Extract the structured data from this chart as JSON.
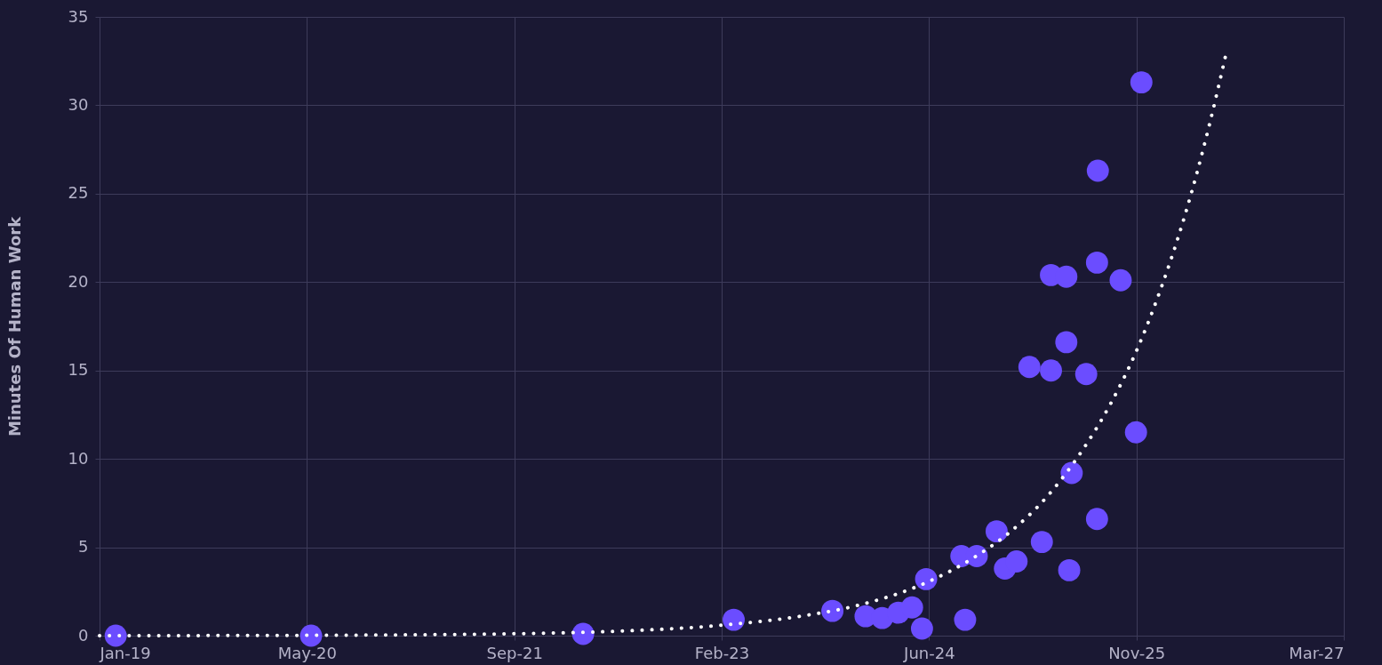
{
  "chart_data": {
    "type": "scatter",
    "ylabel": "Minutes Of Human Work",
    "xlim": [
      "2019-01-01",
      "2027-03-20"
    ],
    "xticks": [
      {
        "value": "2019-01-01",
        "label": "Jan-19"
      },
      {
        "value": "2020-05-15",
        "label": "May-20"
      },
      {
        "value": "2021-09-27",
        "label": "Sep-21"
      },
      {
        "value": "2023-02-09",
        "label": "Feb-23"
      },
      {
        "value": "2024-06-23",
        "label": "Jun-24"
      },
      {
        "value": "2025-11-05",
        "label": "Nov-25"
      },
      {
        "value": "2027-03-20",
        "label": "Mar-27"
      }
    ],
    "ylim": [
      0,
      35
    ],
    "yticks": [
      0,
      5,
      10,
      15,
      20,
      25,
      30,
      35
    ],
    "grid": true,
    "series": [
      {
        "color": "#6b4dff",
        "marker": "circle",
        "x": [
          "2019-02-09",
          "2020-05-25",
          "2022-03-12",
          "2023-03-10",
          "2023-11-03",
          "2024-01-22",
          "2024-03-02",
          "2024-04-10",
          "2024-05-13",
          "2024-06-06",
          "2024-06-16",
          "2024-09-09",
          "2024-09-18",
          "2024-10-16",
          "2024-12-03",
          "2024-12-23",
          "2025-01-20",
          "2025-02-20",
          "2025-03-22",
          "2025-04-13",
          "2025-04-13",
          "2025-05-20",
          "2025-05-20",
          "2025-05-27",
          "2025-06-02",
          "2025-07-07",
          "2025-08-04",
          "2025-08-02",
          "2025-08-02",
          "2025-09-28",
          "2025-11-04",
          "2025-11-17"
        ],
        "values": [
          0,
          0,
          0.1,
          0.9,
          1.4,
          1.1,
          1.0,
          1.3,
          1.6,
          0.4,
          3.2,
          4.5,
          0.9,
          4.5,
          5.9,
          3.8,
          4.2,
          15.2,
          5.3,
          20.4,
          15.0,
          20.3,
          16.6,
          3.7,
          9.2,
          14.8,
          26.3,
          21.1,
          6.6,
          20.1,
          11.5,
          31.3
        ]
      },
      {
        "type": "line",
        "color": "#ffffff",
        "line_style": "dotted",
        "marker": "none",
        "x": [
          "2019-01-01",
          "2020-05-15",
          "2021-09-27",
          "2022-06-01",
          "2023-02-09",
          "2023-09-01",
          "2024-01-01",
          "2024-06-23",
          "2024-10-01",
          "2025-01-01",
          "2025-04-01",
          "2025-07-01",
          "2025-09-01",
          "2025-11-05",
          "2026-01-01",
          "2026-03-01",
          "2026-05-01",
          "2026-06-08"
        ],
        "values": [
          0.0,
          0.02,
          0.11,
          0.25,
          0.59,
          1.15,
          1.7,
          3.07,
          4.3,
          5.8,
          7.8,
          10.6,
          13.0,
          16.1,
          19.5,
          23.7,
          29.0,
          32.8
        ]
      }
    ]
  }
}
